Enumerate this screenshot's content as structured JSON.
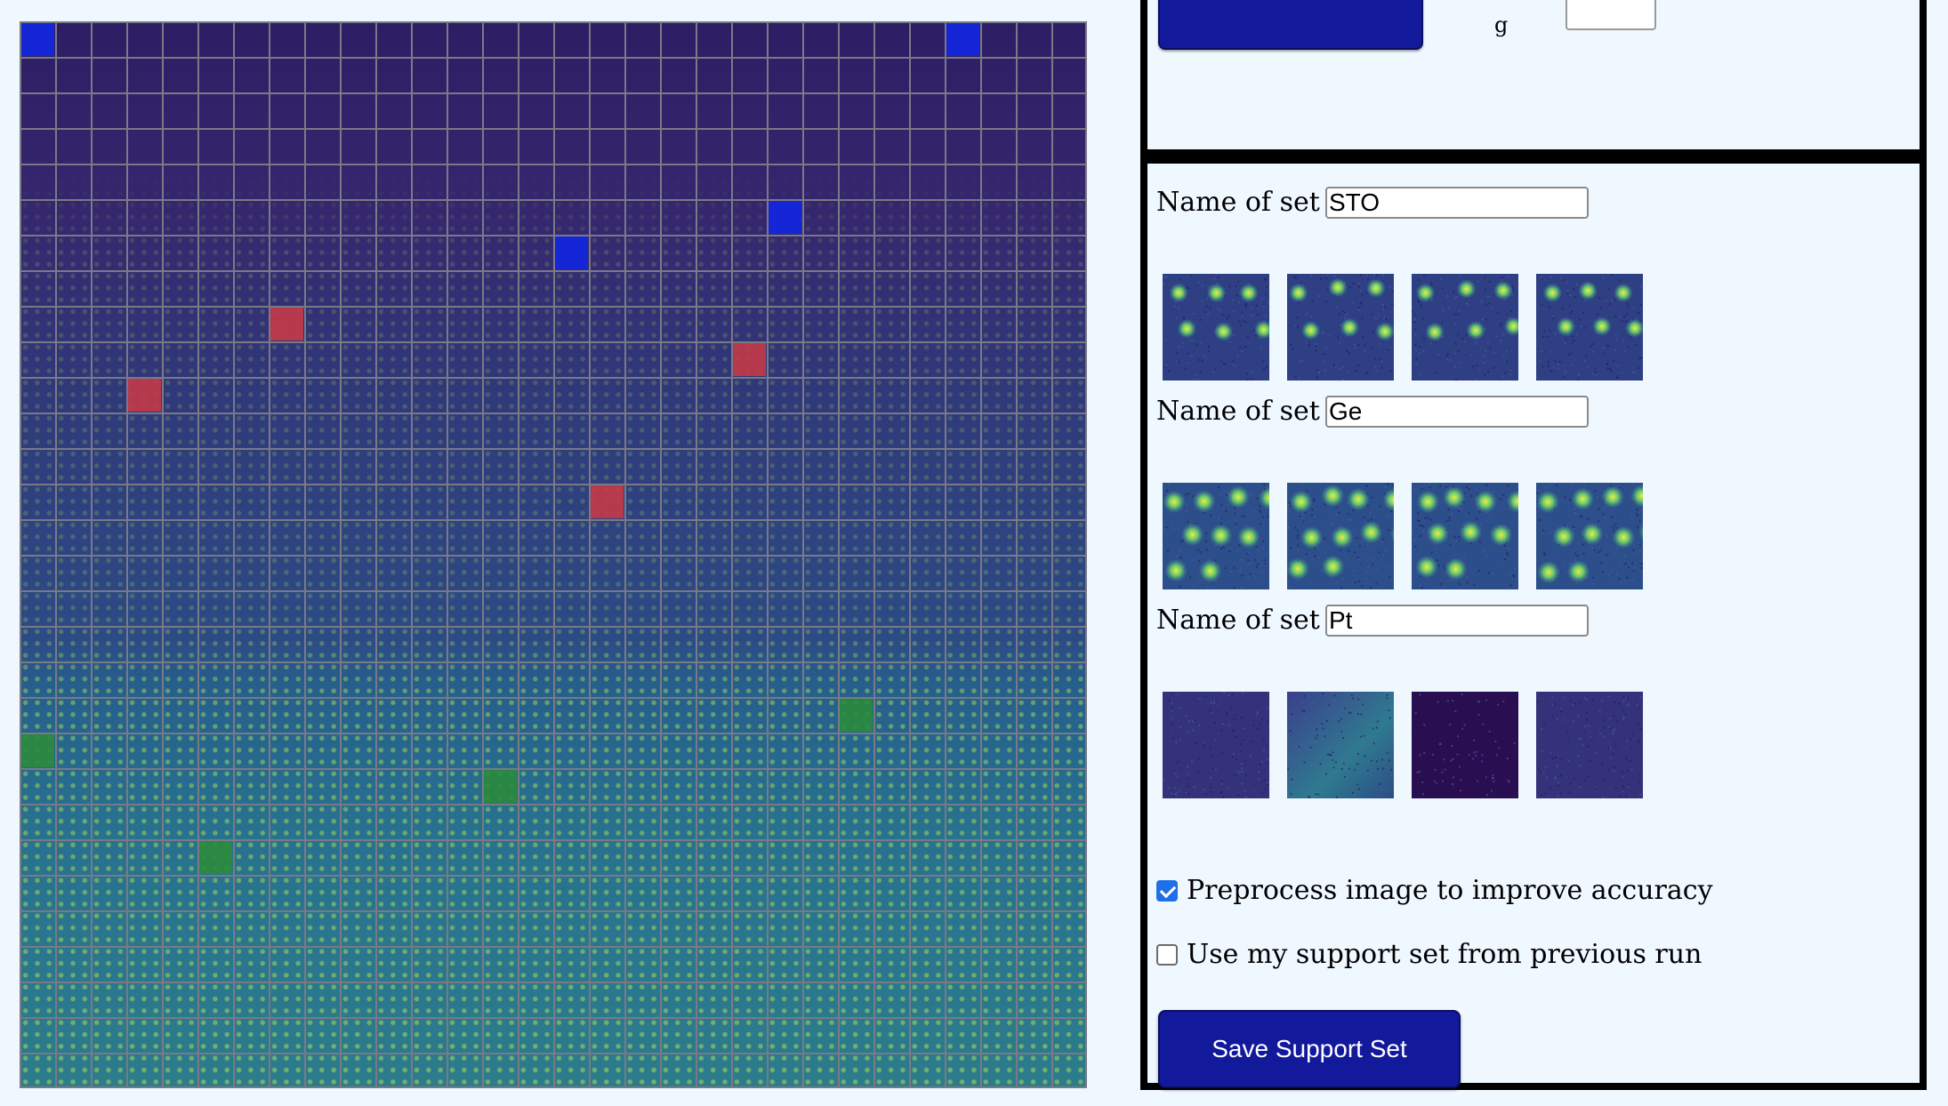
{
  "grid": {
    "rows": 30,
    "cols": 30,
    "selected_cells": {
      "blue": [
        [
          0,
          0
        ],
        [
          0,
          26
        ],
        [
          5,
          21
        ],
        [
          6,
          15
        ]
      ],
      "red": [
        [
          8,
          7
        ],
        [
          9,
          20
        ],
        [
          10,
          3
        ],
        [
          13,
          16
        ]
      ],
      "green": [
        [
          19,
          23
        ],
        [
          20,
          0
        ],
        [
          21,
          13
        ],
        [
          23,
          5
        ]
      ]
    }
  },
  "top_panel": {
    "glyph": "g"
  },
  "sets": [
    {
      "label": "Name of set 1:",
      "value": "STO",
      "thumb_style": "sto"
    },
    {
      "label": "Name of set 2:",
      "value": "Ge",
      "thumb_style": "ge"
    },
    {
      "label": "Name of set 3:",
      "value": "Pt",
      "thumb_style": "pt"
    }
  ],
  "options": {
    "preprocess": {
      "label": "Preprocess image to improve accuracy",
      "checked": true
    },
    "use_previous": {
      "label": "Use my support set from previous run",
      "checked": false
    }
  },
  "save_button_label": "Save Support Set"
}
